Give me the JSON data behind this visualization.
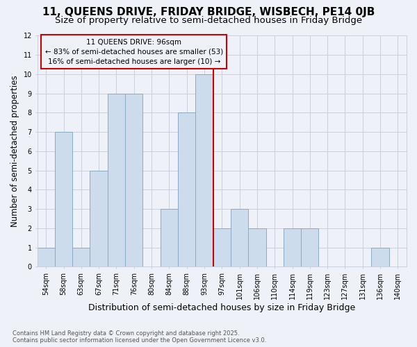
{
  "title": "11, QUEENS DRIVE, FRIDAY BRIDGE, WISBECH, PE14 0JB",
  "subtitle": "Size of property relative to semi-detached houses in Friday Bridge",
  "xlabel": "Distribution of semi-detached houses by size in Friday Bridge",
  "ylabel": "Number of semi-detached properties",
  "categories": [
    "54sqm",
    "58sqm",
    "63sqm",
    "67sqm",
    "71sqm",
    "76sqm",
    "80sqm",
    "84sqm",
    "88sqm",
    "93sqm",
    "97sqm",
    "101sqm",
    "106sqm",
    "110sqm",
    "114sqm",
    "119sqm",
    "123sqm",
    "127sqm",
    "131sqm",
    "136sqm",
    "140sqm"
  ],
  "values": [
    1,
    7,
    1,
    5,
    9,
    9,
    0,
    3,
    8,
    10,
    2,
    3,
    2,
    0,
    2,
    2,
    0,
    0,
    0,
    1,
    0
  ],
  "bar_color": "#ccdcec",
  "bar_edge_color": "#8aaac4",
  "marker_line_index": 10,
  "marker_label": "11 QUEENS DRIVE: 96sqm",
  "marker_pct_smaller": "83% of semi-detached houses are smaller (53)",
  "marker_pct_larger": "16% of semi-detached houses are larger (10)",
  "marker_color": "#cc0000",
  "ylim": [
    0,
    12
  ],
  "yticks": [
    0,
    1,
    2,
    3,
    4,
    5,
    6,
    7,
    8,
    9,
    10,
    11,
    12
  ],
  "background_color": "#eef2f8",
  "grid_color": "#c8d0dc",
  "footnote": "Contains HM Land Registry data © Crown copyright and database right 2025.\nContains public sector information licensed under the Open Government Licence v3.0.",
  "title_fontsize": 11,
  "subtitle_fontsize": 9.5,
  "xlabel_fontsize": 9,
  "ylabel_fontsize": 8.5,
  "tick_fontsize": 7,
  "annot_fontsize": 7.5,
  "footnote_fontsize": 6
}
